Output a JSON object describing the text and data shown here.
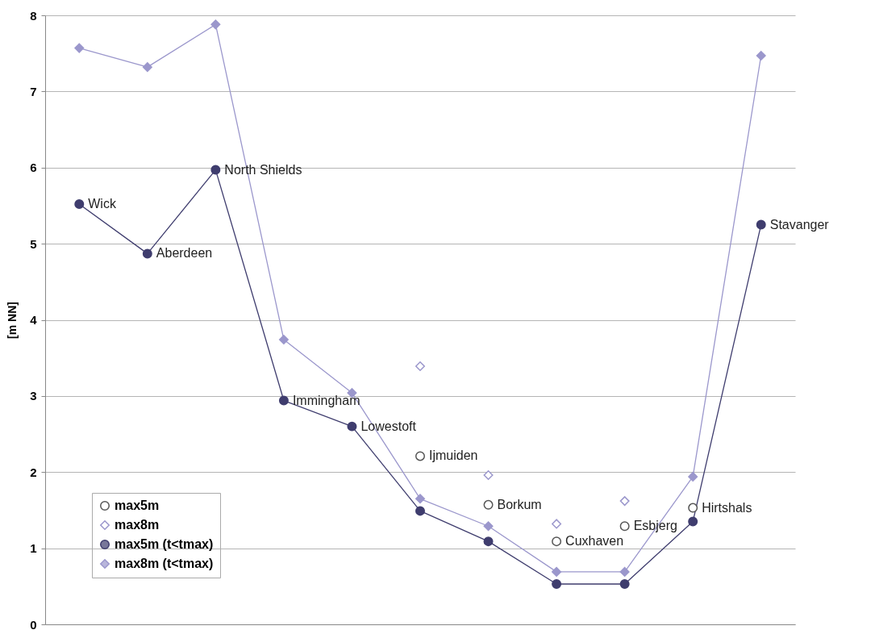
{
  "chart_data": {
    "type": "line",
    "ylabel": "[m NN]",
    "categories": [
      null,
      null,
      null,
      null,
      null,
      null,
      null,
      null,
      null,
      null,
      null
    ],
    "annotations": [
      "Wick",
      "Aberdeen",
      "North Shields",
      "Immingham",
      "Lowestoft",
      "Ijmuiden",
      "Borkum",
      "Cuxhaven",
      "Esbjerg",
      "Hirtshals",
      "Stavanger"
    ],
    "ylim": [
      0,
      8
    ],
    "yticks": [
      0,
      1,
      2,
      3,
      4,
      5,
      6,
      7,
      8
    ],
    "grid": "y",
    "legend": "bottom left",
    "series": [
      {
        "name": "max5m",
        "type": "scatter",
        "marker": "circle",
        "color": "#555555",
        "values": [
          null,
          null,
          null,
          null,
          null,
          2.21,
          1.57,
          1.09,
          1.29,
          1.53,
          null
        ]
      },
      {
        "name": "max8m",
        "type": "scatter",
        "marker": "diamond",
        "color": "#9b97cc",
        "values": [
          null,
          null,
          null,
          null,
          null,
          3.39,
          1.96,
          1.32,
          1.62,
          null,
          null
        ]
      },
      {
        "name": "max5m (t<tmax)",
        "marker": "circle",
        "color": "#3f3d6e",
        "values": [
          5.52,
          4.87,
          5.97,
          2.94,
          2.6,
          1.49,
          1.09,
          0.53,
          0.53,
          1.35,
          5.25
        ]
      },
      {
        "name": "max8m (t<tmax)",
        "marker": "diamond",
        "color": "#9b97cc",
        "values": [
          7.57,
          7.32,
          7.88,
          3.74,
          3.04,
          1.65,
          1.29,
          0.69,
          0.69,
          1.94,
          7.47
        ]
      }
    ]
  }
}
